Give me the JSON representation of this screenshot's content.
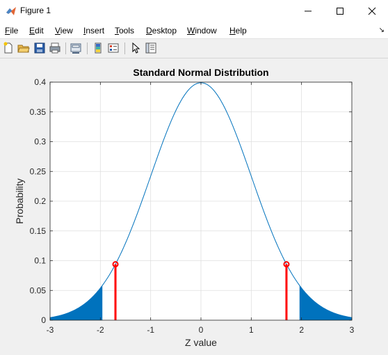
{
  "window": {
    "title": "Figure 1"
  },
  "menu": [
    "File",
    "Edit",
    "View",
    "Insert",
    "Tools",
    "Desktop",
    "Window",
    "Help"
  ],
  "menu_underline": [
    "F",
    "E",
    "V",
    "I",
    "T",
    "D",
    "W",
    "H"
  ],
  "menu_rest": [
    "ile",
    "dit",
    "iew",
    "nsert",
    "ools",
    "esktop",
    "indow",
    "elp"
  ],
  "toolbar": {
    "icons": [
      "new-figure-icon",
      "open-file-icon",
      "save-icon",
      "print-icon",
      "link-plot-icon",
      "insert-colorbar-icon",
      "insert-legend-icon",
      "edit-plot-icon",
      "property-inspector-icon"
    ]
  },
  "colors": {
    "curve": "#0072bd",
    "fill": "#0072bd",
    "marker": "#ff0000"
  },
  "chart_data": {
    "type": "area",
    "title": "Standard Normal Distribution",
    "xlabel": "Z value",
    "ylabel": "Probability",
    "xlim": [
      -3,
      3
    ],
    "ylim": [
      0,
      0.4
    ],
    "xticks": [
      -3,
      -2,
      -1,
      0,
      1,
      2,
      3
    ],
    "yticks": [
      0,
      0.05,
      0.1,
      0.15,
      0.2,
      0.25,
      0.3,
      0.35,
      0.4
    ],
    "xtick_labels": [
      "-3",
      "-2",
      "-1",
      "0",
      "1",
      "2",
      "3"
    ],
    "ytick_labels": [
      "0",
      "0.05",
      "0.1",
      "0.15",
      "0.2",
      "0.25",
      "0.3",
      "0.35",
      "0.4"
    ],
    "grid": true,
    "curve": {
      "function": "standard normal pdf",
      "x_range": [
        -3,
        3
      ]
    },
    "shaded_tails": [
      {
        "from": -3,
        "to": -1.96
      },
      {
        "from": 1.96,
        "to": 3
      }
    ],
    "stems": [
      {
        "x": -1.7,
        "y": 0.094
      },
      {
        "x": 1.7,
        "y": 0.094
      }
    ]
  }
}
